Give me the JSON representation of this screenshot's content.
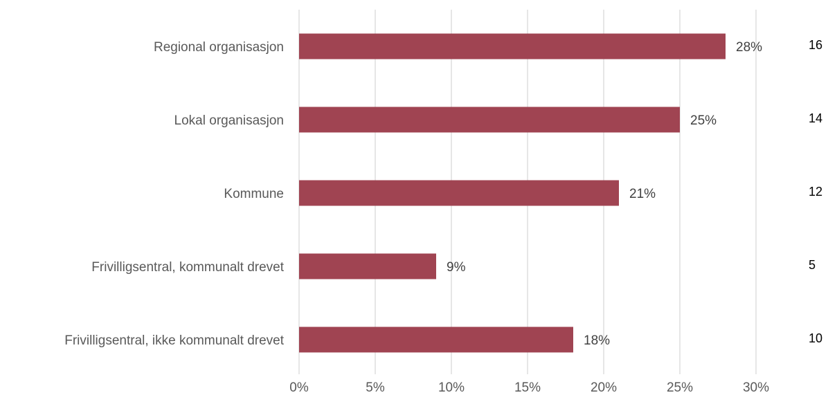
{
  "chart_data": {
    "type": "bar",
    "orientation": "horizontal",
    "categories": [
      "Regional organisasjon",
      "Lokal organisasjon",
      "Kommune",
      "Frivilligsentral, kommunalt drevet",
      "Frivilligsentral, ikke kommunalt drevet"
    ],
    "values": [
      28,
      25,
      21,
      9,
      18
    ],
    "data_labels": [
      "28%",
      "25%",
      "21%",
      "9%",
      "18%"
    ],
    "counts": [
      "16",
      "14",
      "12",
      "5",
      "10"
    ],
    "x_ticks": [
      "0%",
      "5%",
      "10%",
      "15%",
      "20%",
      "25%",
      "30%"
    ],
    "xlim": [
      0,
      30
    ],
    "grid": true,
    "bar_color": "#a04452",
    "title": "",
    "xlabel": "",
    "ylabel": ""
  }
}
